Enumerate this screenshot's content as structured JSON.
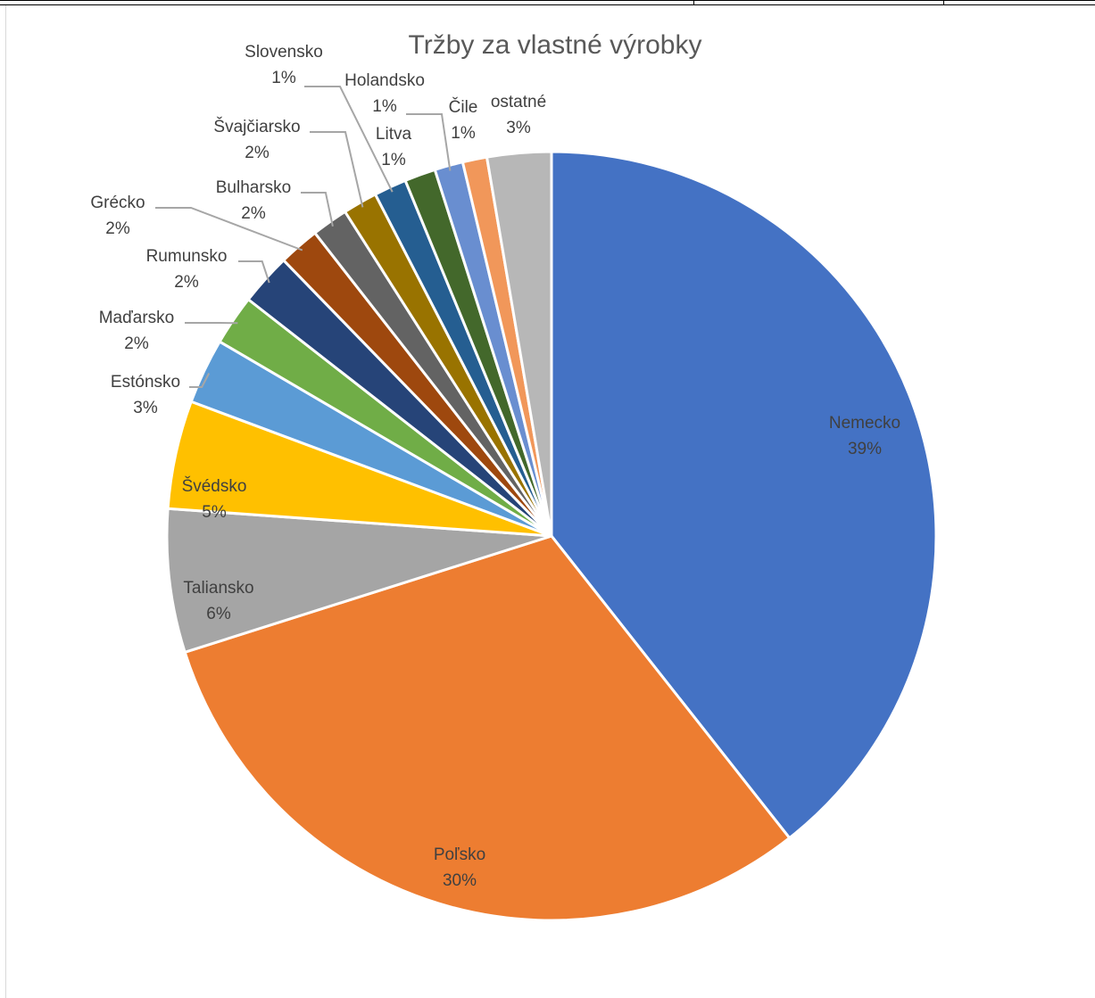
{
  "chart_data": {
    "type": "pie",
    "title": "Tržby za vlastné výrobky",
    "slices": [
      {
        "name": "Nemecko",
        "value": 39,
        "label": "39%",
        "color": "#4472C4"
      },
      {
        "name": "Poľsko",
        "value": 30,
        "label": "30%",
        "color": "#ED7D31"
      },
      {
        "name": "Taliansko",
        "value": 6,
        "label": "6%",
        "color": "#A5A5A5"
      },
      {
        "name": "Švédsko",
        "value": 5,
        "label": "5%",
        "color": "#FFC000"
      },
      {
        "name": "Estónsko",
        "value": 3,
        "label": "3%",
        "color": "#5B9BD5"
      },
      {
        "name": "Maďarsko",
        "value": 2,
        "label": "2%",
        "color": "#70AD47"
      },
      {
        "name": "Rumunsko",
        "value": 2,
        "label": "2%",
        "color": "#264478"
      },
      {
        "name": "Grécko",
        "value": 2,
        "label": "2%",
        "color": "#9E480E"
      },
      {
        "name": "Bulharsko",
        "value": 2,
        "label": "2%",
        "color": "#636363"
      },
      {
        "name": "Švajčiarsko",
        "value": 2,
        "label": "2%",
        "color": "#997300"
      },
      {
        "name": "Slovensko",
        "value": 1,
        "label": "1%",
        "color": "#255E91"
      },
      {
        "name": "Litva",
        "value": 1,
        "label": "1%",
        "color": "#43682B"
      },
      {
        "name": "Holandsko",
        "value": 1,
        "label": "1%",
        "color": "#698ED0"
      },
      {
        "name": "Čile",
        "value": 1,
        "label": "1%",
        "color": "#F1975A"
      },
      {
        "name": "ostatné",
        "value": 3,
        "label": "3%",
        "color": "#B7B7B7"
      }
    ],
    "start_at": "12 o'clock",
    "direction": "clockwise",
    "data_labels": "category name and percentage",
    "legend": "none"
  }
}
